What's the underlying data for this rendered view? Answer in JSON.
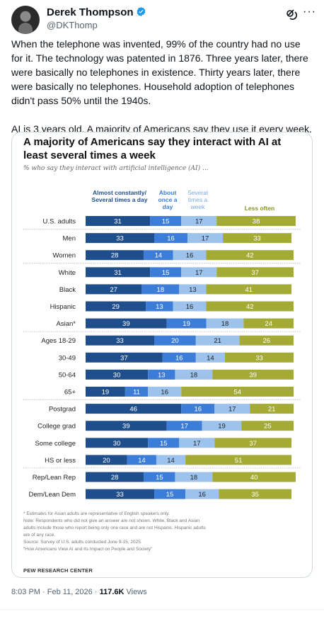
{
  "author": {
    "name": "Derek Thompson",
    "handle": "@DKThomp",
    "verified": true
  },
  "header_icons": [
    "grok-icon",
    "more-icon"
  ],
  "tweet": {
    "paragraphs": [
      "When the telephone was invented, 99% of the country had no use for it. The technology was patented in 1876. Three years later, there were basically no telephones in existence. Thirty years later, there were basically no telephones. Household adoption of telephones didn't pass 50% until the 1940s.",
      "AI is 3 years old. A majority of Americans say they use it every week."
    ]
  },
  "card": {
    "footnotes": [
      "* Estimates for Asian adults are representative of English speakers only.",
      "Note: Respondents who did not give an answer are not shown. White, Black and Asian",
      "adults include those who report being only one race and are not Hispanic. Hispanic adults",
      "are of any race.",
      "Source: Survey of U.S. adults conducted June 9-15, 2025.",
      "“How Americans View AI and Its Impact on People and Society”"
    ],
    "source_org": "PEW RESEARCH CENTER"
  },
  "chart_data": {
    "type": "bar",
    "stacked": true,
    "orientation": "horizontal",
    "title": "A majority of Americans say they interact with AI at least several times a week",
    "subtitle": "% who say they interact with artificial intelligence (AI) ...",
    "series": [
      {
        "name": "Almost constantly/ Several times a day",
        "color": "#1f4e8c",
        "text_color": "#ffffff"
      },
      {
        "name": "About once a day",
        "color": "#3b7dd8",
        "text_color": "#ffffff"
      },
      {
        "name": "Several times a week",
        "color": "#9dc3ec",
        "text_color": "#222222"
      },
      {
        "name": "Less often",
        "color": "#a3ab35",
        "text_color": "#ffffff"
      }
    ],
    "categories": [
      "U.S. adults",
      "Men",
      "Women",
      "White",
      "Black",
      "Hispanic",
      "Asian*",
      "Ages 18-29",
      "30-49",
      "50-64",
      "65+",
      "Postgrad",
      "College grad",
      "Some college",
      "HS or less",
      "Rep/Lean Rep",
      "Dem/Lean Dem"
    ],
    "values": [
      [
        31,
        15,
        17,
        38
      ],
      [
        33,
        16,
        17,
        33
      ],
      [
        28,
        14,
        16,
        42
      ],
      [
        31,
        15,
        17,
        37
      ],
      [
        27,
        18,
        13,
        41
      ],
      [
        29,
        13,
        16,
        42
      ],
      [
        39,
        19,
        18,
        24
      ],
      [
        33,
        20,
        21,
        26
      ],
      [
        37,
        16,
        14,
        33
      ],
      [
        30,
        13,
        18,
        39
      ],
      [
        19,
        11,
        16,
        54
      ],
      [
        46,
        16,
        17,
        21
      ],
      [
        39,
        17,
        19,
        25
      ],
      [
        30,
        15,
        17,
        37
      ],
      [
        20,
        14,
        14,
        51
      ],
      [
        28,
        15,
        18,
        40
      ],
      [
        33,
        15,
        16,
        35
      ]
    ],
    "xlim": [
      0,
      100
    ],
    "grid": false,
    "legend": "column headers above bars"
  },
  "footer": {
    "time": "8:03 PM",
    "sep": "·",
    "date": "Feb 11, 2026",
    "views_count": "117.6K",
    "views_label": "Views"
  }
}
